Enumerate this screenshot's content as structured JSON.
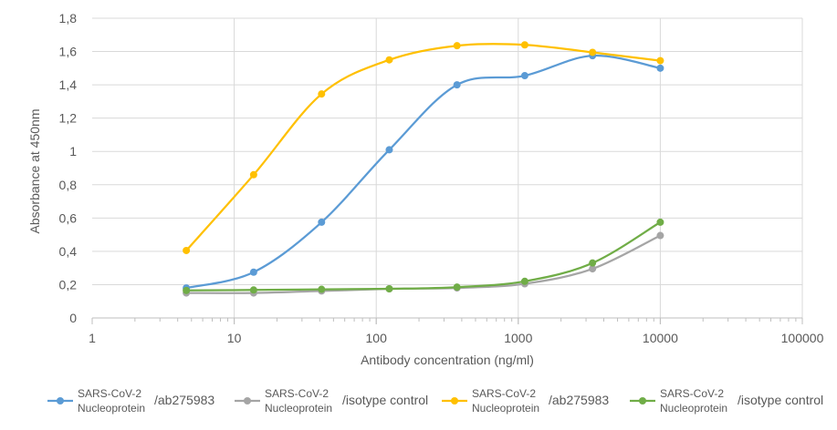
{
  "chart_data": {
    "type": "line",
    "xscale": "log",
    "xlabel": "Antibody concentration (ng/ml)",
    "ylabel": "Absorbance at 450nm",
    "xlim": [
      1,
      100000
    ],
    "ylim": [
      0,
      1.8
    ],
    "x_ticks": [
      "1",
      "10",
      "100",
      "1000",
      "10000",
      "100000"
    ],
    "y_ticks": [
      "0",
      "0,2",
      "0,4",
      "0,6",
      "0,8",
      "1",
      "1,2",
      "1,4",
      "1,6",
      "1,8"
    ],
    "grid": true,
    "legend_position": "bottom",
    "x": [
      4.6,
      13.7,
      41.2,
      123.5,
      370.4,
      1111.1,
      3333.3,
      10000
    ],
    "series": [
      {
        "name_line1": "SARS-CoV-2",
        "name_line2": "Nucleoprotein",
        "name_suffix": "/ab275983",
        "color": "#5B9BD5",
        "values": [
          0.18,
          0.275,
          0.575,
          1.01,
          1.4,
          1.455,
          1.575,
          1.5
        ]
      },
      {
        "name_line1": "SARS-CoV-2",
        "name_line2": "Nucleoprotein",
        "name_suffix": "/isotype control",
        "color": "#A5A5A5",
        "values": [
          0.15,
          0.15,
          0.162,
          0.175,
          0.18,
          0.205,
          0.295,
          0.495
        ]
      },
      {
        "name_line1": "SARS-CoV-2",
        "name_line2": "Nucleoprotein",
        "name_suffix": "/ab275983",
        "color": "#FFC000",
        "values": [
          0.405,
          0.86,
          1.345,
          1.55,
          1.635,
          1.64,
          1.595,
          1.545
        ]
      },
      {
        "name_line1": "SARS-CoV-2",
        "name_line2": "Nucleoprotein",
        "name_suffix": "/isotype control",
        "color": "#70AD47",
        "values": [
          0.165,
          0.168,
          0.172,
          0.175,
          0.185,
          0.22,
          0.33,
          0.575
        ]
      }
    ]
  }
}
